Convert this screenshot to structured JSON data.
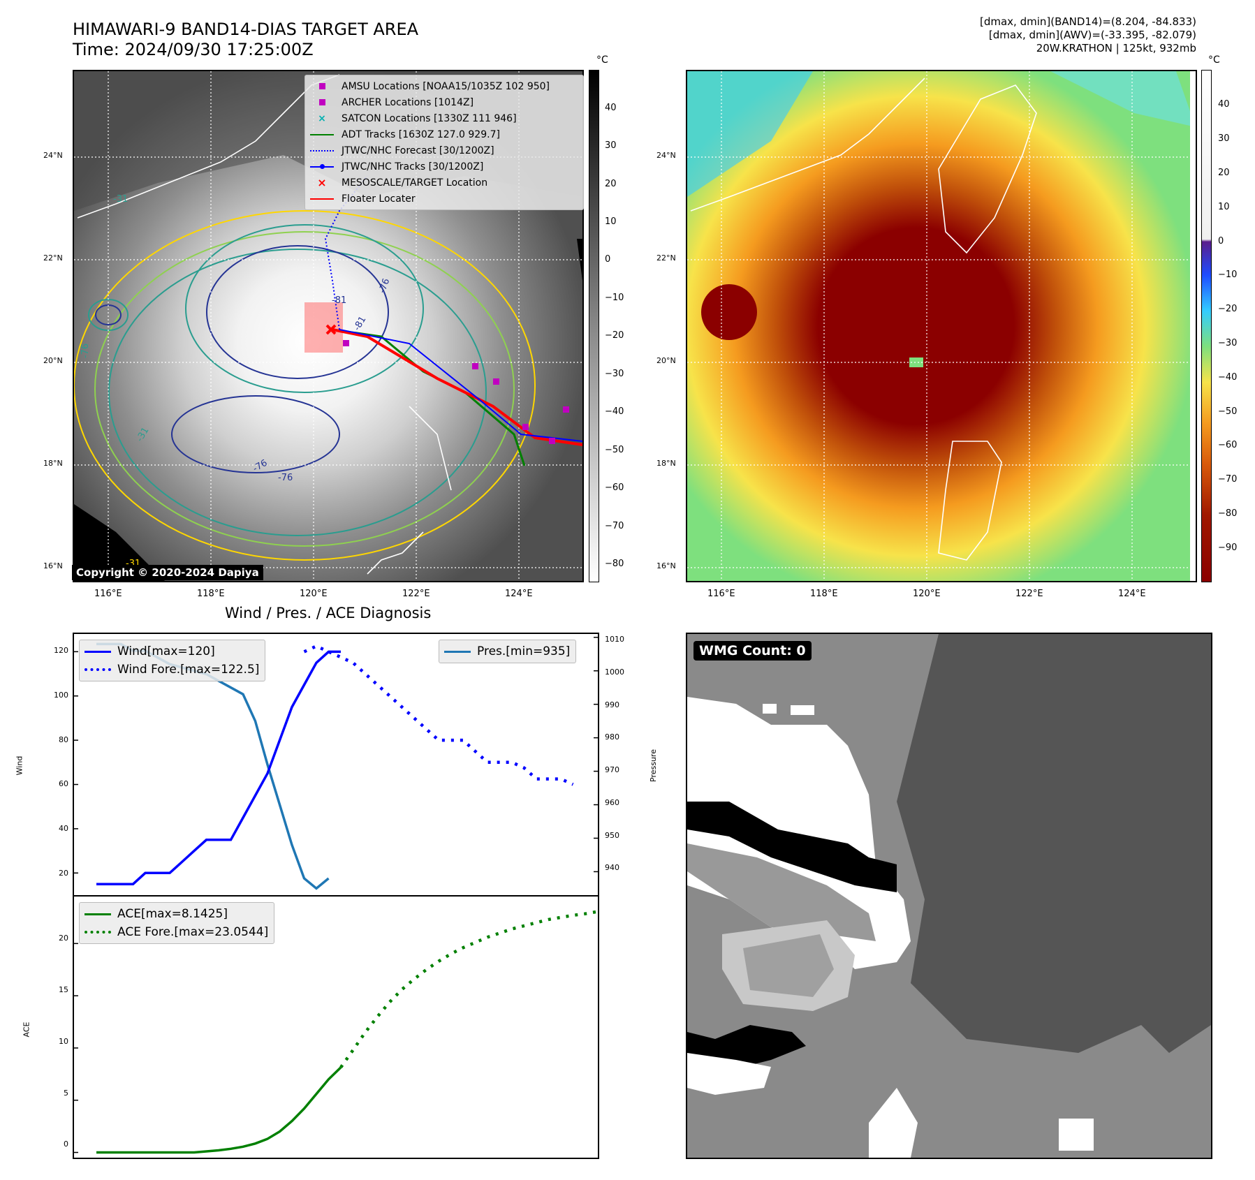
{
  "header": {
    "title_line1": "HIMAWARI-9 BAND14-DIAS TARGET AREA",
    "title_line2": "Time: 2024/09/30 17:25:00Z",
    "info_line1": "[dmax, dmin](BAND14)=(8.204, -84.833)",
    "info_line2": "[dmax, dmin](AWV)=(-33.395, -82.079)",
    "info_line3": "20W.KRATHON | 125kt, 932mb"
  },
  "map_axes": {
    "lon_ticks": [
      "116°E",
      "118°E",
      "120°E",
      "122°E",
      "124°E"
    ],
    "lat_ticks": [
      "24°N",
      "22°N",
      "20°N",
      "18°N",
      "16°N"
    ]
  },
  "ir_panel": {
    "unit": "°C",
    "colorbar_ticks": [
      "40",
      "30",
      "20",
      "10",
      "0",
      "−10",
      "−20",
      "−30",
      "−40",
      "−50",
      "−60",
      "−70",
      "−80"
    ],
    "contour_labels": [
      "-76",
      "-81",
      "-76",
      "-31",
      "-81",
      "-76",
      "-31",
      "-76",
      "-31"
    ],
    "copyright": "Copyright © 2020-2024 Dapiya",
    "legend": [
      {
        "label": "AMSU Locations [NOAA15/1035Z 102 950]",
        "color": "#c000c0",
        "marker": "square"
      },
      {
        "label": "ARCHER Locations [1014Z]",
        "color": "#c000c0",
        "marker": "square"
      },
      {
        "label": "SATCON Locations [1330Z 111 946]",
        "color": "#00b0b0",
        "marker": "x"
      },
      {
        "label": "ADT Tracks [1630Z 127.0 929.7]",
        "color": "#008000",
        "marker": "line"
      },
      {
        "label": "JTWC/NHC Forecast [30/1200Z]",
        "color": "#0000ff",
        "marker": "dotted"
      },
      {
        "label": "JTWC/NHC Tracks [30/1200Z]",
        "color": "#0000ff",
        "marker": "line-dot"
      },
      {
        "label": "MESOSCALE/TARGET Location",
        "color": "#ff0000",
        "marker": "x"
      },
      {
        "label": "Floater Locater",
        "color": "#ff0000",
        "marker": "line"
      }
    ]
  },
  "awv_panel": {
    "unit": "°C",
    "colorbar_ticks": [
      "40",
      "30",
      "20",
      "10",
      "0",
      "−10",
      "−20",
      "−30",
      "−40",
      "−50",
      "−60",
      "−70",
      "−80",
      "−90"
    ]
  },
  "wind_panel": {
    "title": "Wind / Pres. / ACE Diagnosis",
    "ylabel_left": "Wind",
    "ylabel_right": "Pressure",
    "wind_ticks": [
      "120",
      "100",
      "80",
      "60",
      "40",
      "20"
    ],
    "pres_ticks": [
      "1010",
      "1000",
      "990",
      "980",
      "970",
      "960",
      "950",
      "940"
    ],
    "legend_wind": "Wind[max=120]",
    "legend_wind_fore": "Wind Fore.[max=122.5]",
    "legend_pres": "Pres.[min=935]"
  },
  "ace_panel": {
    "ylabel": "ACE",
    "ticks": [
      "20",
      "15",
      "10",
      "5",
      "0"
    ],
    "legend_ace": "ACE[max=8.1425]",
    "legend_ace_fore": "ACE Fore.[max=23.0544]"
  },
  "wmg_panel": {
    "label": "WMG Count: 0"
  },
  "chart_data": [
    {
      "type": "line",
      "title": "Wind / Pres. / ACE Diagnosis",
      "ylabel": "Wind",
      "ylim": [
        10,
        128
      ],
      "series": [
        {
          "name": "Wind[max=120]",
          "color": "#0000ff",
          "style": "solid",
          "values": [
            15,
            15,
            15,
            15,
            20,
            20,
            20,
            25,
            30,
            35,
            35,
            35,
            45,
            55,
            65,
            80,
            95,
            105,
            115,
            120,
            120
          ]
        },
        {
          "name": "Wind Fore.[max=122.5]",
          "color": "#0000ff",
          "style": "dotted",
          "values": [
            120,
            122.5,
            120,
            117.5,
            115,
            110,
            105,
            100,
            95,
            90,
            85,
            80,
            80,
            80,
            75,
            70,
            70,
            70,
            67.5,
            62.5,
            62.5,
            62.5,
            60
          ]
        }
      ]
    },
    {
      "type": "line",
      "ylabel": "Pressure",
      "ylim": [
        933,
        1011
      ],
      "series": [
        {
          "name": "Pres.[min=935]",
          "color": "#1f77b4",
          "style": "solid",
          "values": [
            1008,
            1008,
            1008,
            1006,
            1006,
            1004,
            1002,
            1001,
            1000,
            999,
            997,
            995,
            993,
            985,
            972,
            960,
            948,
            938,
            935,
            938
          ]
        }
      ]
    },
    {
      "type": "line",
      "ylabel": "ACE",
      "ylim": [
        -0.5,
        24.5
      ],
      "series": [
        {
          "name": "ACE[max=8.1425]",
          "color": "#008000",
          "style": "solid",
          "values": [
            0,
            0,
            0,
            0,
            0,
            0,
            0,
            0,
            0,
            0.1,
            0.2,
            0.35,
            0.55,
            0.85,
            1.3,
            2.0,
            3.0,
            4.2,
            5.6,
            7.0,
            8.14
          ]
        },
        {
          "name": "ACE Fore.[max=23.0544]",
          "color": "#008000",
          "style": "dotted",
          "values": [
            8.14,
            9.8,
            11.5,
            13.0,
            14.4,
            15.6,
            16.6,
            17.5,
            18.3,
            19.0,
            19.6,
            20.1,
            20.6,
            21.0,
            21.4,
            21.7,
            22.0,
            22.3,
            22.5,
            22.7,
            22.85,
            23.0544
          ]
        }
      ]
    }
  ]
}
